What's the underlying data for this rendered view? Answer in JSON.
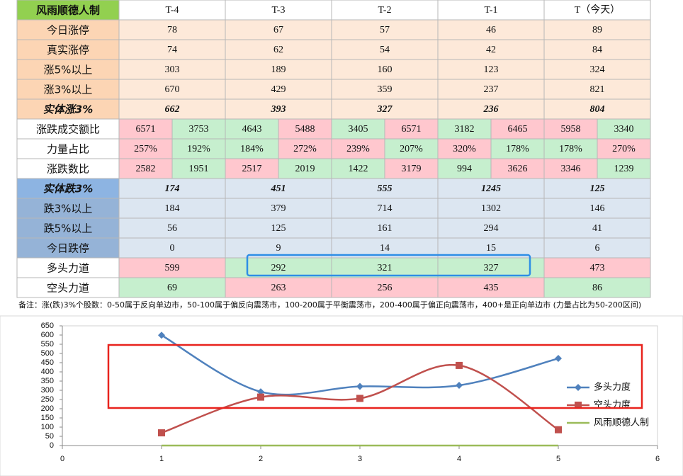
{
  "table": {
    "header": [
      "风雨顺德人制",
      "T-4",
      "T-3",
      "T-2",
      "T-1",
      "T（今天）"
    ],
    "rows": [
      {
        "label": "今日涨停",
        "values": [
          "78",
          "67",
          "57",
          "46",
          "89"
        ]
      },
      {
        "label": "真实涨停",
        "values": [
          "74",
          "62",
          "54",
          "42",
          "84"
        ]
      },
      {
        "label": "涨5%以上",
        "values": [
          "303",
          "189",
          "160",
          "123",
          "324"
        ]
      },
      {
        "label": "涨3%以上",
        "values": [
          "670",
          "429",
          "359",
          "237",
          "821"
        ]
      },
      {
        "label": "实体涨3%",
        "values": [
          "662",
          "393",
          "327",
          "236",
          "804"
        ]
      },
      {
        "label": "涨跌成交额比",
        "values": [
          "6571",
          "3753",
          "4643",
          "5488",
          "3405",
          "6571",
          "3182",
          "6465",
          "5958",
          "3340"
        ]
      },
      {
        "label": "力量占比",
        "values": [
          "257%",
          "192%",
          "184%",
          "272%",
          "239%",
          "207%",
          "320%",
          "178%",
          "178%",
          "270%"
        ]
      },
      {
        "label": "涨跌数比",
        "values": [
          "2582",
          "1951",
          "2517",
          "2019",
          "1422",
          "3179",
          "994",
          "3626",
          "3346",
          "1239"
        ]
      },
      {
        "label": "实体跌3%",
        "values": [
          "174",
          "451",
          "555",
          "1245",
          "125"
        ]
      },
      {
        "label": "跌3%以上",
        "values": [
          "184",
          "379",
          "714",
          "1302",
          "146"
        ]
      },
      {
        "label": "跌5%以上",
        "values": [
          "56",
          "125",
          "161",
          "294",
          "41"
        ]
      },
      {
        "label": "今日跌停",
        "values": [
          "0",
          "9",
          "14",
          "15",
          "6"
        ]
      },
      {
        "label": "多头力道",
        "values": [
          "599",
          "292",
          "321",
          "327",
          "473"
        ]
      },
      {
        "label": "空头力道",
        "values": [
          "69",
          "263",
          "256",
          "435",
          "86"
        ]
      }
    ]
  },
  "note": "备注：涨(跌)3%个股数：0-50属于反向单边市，50-100属于偏反向震荡市，100-200属于平衡震荡市，200-400属于偏正向震荡市，400+是正向单边市 (力量占比为50-200区间)",
  "chart_data": {
    "type": "line",
    "x": [
      1,
      2,
      3,
      4,
      5
    ],
    "series": [
      {
        "name": "多头力度",
        "color": "#4f81bd",
        "marker": "diamond",
        "values": [
          599,
          292,
          321,
          327,
          473
        ]
      },
      {
        "name": "空头力度",
        "color": "#c0504d",
        "marker": "square",
        "values": [
          69,
          263,
          256,
          435,
          86
        ]
      },
      {
        "name": "风雨顺德人制",
        "color": "#9bbb59",
        "marker": "none",
        "values": [
          0,
          0,
          0,
          0,
          0
        ]
      }
    ],
    "xlim": [
      0,
      6
    ],
    "xticks": [
      0,
      1,
      2,
      3,
      4,
      5,
      6
    ],
    "ylim": [
      0,
      650
    ],
    "yticks": [
      0,
      50,
      100,
      150,
      200,
      250,
      300,
      350,
      400,
      450,
      500,
      550,
      600,
      650
    ],
    "smooth": true,
    "legend": "right"
  }
}
